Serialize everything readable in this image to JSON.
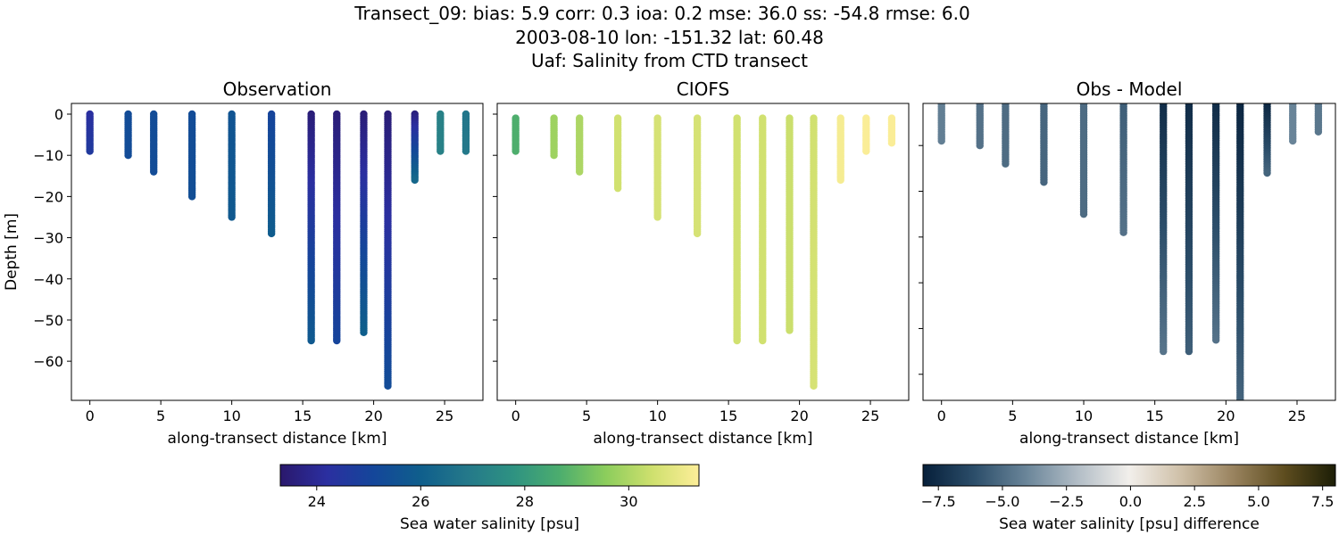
{
  "title_lines": [
    "Transect_09: bias: 5.9  corr: 0.3  ioa: 0.2  mse: 36.0  ss: -54.8  rmse: 6.0",
    "2003-08-10 lon: -151.32 lat: 60.48",
    "Uaf: Salinity from CTD transect"
  ],
  "chart_data": [
    {
      "type": "scatter",
      "title": "Observation",
      "xlabel": "along-transect distance [km]",
      "ylabel": "Depth [m]",
      "xlim": [
        -1.3,
        27.7
      ],
      "ylim": [
        -69.5,
        2.6
      ],
      "xticks": [
        0,
        5,
        10,
        15,
        20,
        25
      ],
      "yticks": [
        0,
        -10,
        -20,
        -30,
        -40,
        -50,
        -60
      ],
      "xtick_labels": [
        "0",
        "5",
        "10",
        "15",
        "20",
        "25"
      ],
      "ytick_labels": [
        "0",
        "−10",
        "−20",
        "−30",
        "−40",
        "−50",
        "−60"
      ],
      "colormap": "haline",
      "profiles": [
        {
          "x": 0,
          "top": 0,
          "bottom": -9,
          "value_top": 24.2,
          "value_bottom": 24.6
        },
        {
          "x": 2.7,
          "top": 0,
          "bottom": -10,
          "value_top": 25.3,
          "value_bottom": 25.3
        },
        {
          "x": 4.5,
          "top": 0,
          "bottom": -14,
          "value_top": 25.3,
          "value_bottom": 25.3
        },
        {
          "x": 7.2,
          "top": 0,
          "bottom": -20,
          "value_top": 25.3,
          "value_bottom": 25.4
        },
        {
          "x": 10.0,
          "top": 0,
          "bottom": -25,
          "value_top": 25.6,
          "value_bottom": 25.8
        },
        {
          "x": 12.8,
          "top": 0,
          "bottom": -29,
          "value_top": 25.0,
          "value_bottom": 25.9
        },
        {
          "x": 15.6,
          "top": 0,
          "bottom": -55,
          "value_top": 23.5,
          "value_bottom": 25.8
        },
        {
          "x": 17.4,
          "top": 0,
          "bottom": -55,
          "value_top": 23.5,
          "value_bottom": 25.0
        },
        {
          "x": 19.3,
          "top": 0,
          "bottom": -53,
          "value_top": 23.5,
          "value_bottom": 26.0
        },
        {
          "x": 21.0,
          "top": 0,
          "bottom": -66,
          "value_top": 23.5,
          "value_bottom": 25.3
        },
        {
          "x": 22.9,
          "top": 0,
          "bottom": -16,
          "value_top": 23.6,
          "value_bottom": 26.3
        },
        {
          "x": 24.7,
          "top": 0,
          "bottom": -9,
          "value_top": 27.2,
          "value_bottom": 27.2
        },
        {
          "x": 26.5,
          "top": 0,
          "bottom": -9,
          "value_top": 26.8,
          "value_bottom": 26.9
        }
      ]
    },
    {
      "type": "scatter",
      "title": "CIOFS",
      "xlabel": "along-transect distance [km]",
      "xlim": [
        -1.3,
        27.7
      ],
      "ylim": [
        -69.5,
        2.6
      ],
      "xticks": [
        0,
        5,
        10,
        15,
        20,
        25
      ],
      "yticks": [
        0,
        -10,
        -20,
        -30,
        -40,
        -50,
        -60
      ],
      "xtick_labels": [
        "0",
        "5",
        "10",
        "15",
        "20",
        "25"
      ],
      "colormap": "haline",
      "profiles": [
        {
          "x": 0,
          "top": -1,
          "bottom": -9,
          "value_top": 28.7,
          "value_bottom": 28.7
        },
        {
          "x": 2.7,
          "top": -1,
          "bottom": -10,
          "value_top": 29.8,
          "value_bottom": 29.8
        },
        {
          "x": 4.5,
          "top": -1,
          "bottom": -14,
          "value_top": 30.0,
          "value_bottom": 30.0
        },
        {
          "x": 7.2,
          "top": -1,
          "bottom": -18,
          "value_top": 30.5,
          "value_bottom": 30.5
        },
        {
          "x": 10.0,
          "top": -1,
          "bottom": -25,
          "value_top": 30.6,
          "value_bottom": 30.6
        },
        {
          "x": 12.8,
          "top": -1,
          "bottom": -29,
          "value_top": 30.6,
          "value_bottom": 30.6
        },
        {
          "x": 15.6,
          "top": -1,
          "bottom": -55,
          "value_top": 30.5,
          "value_bottom": 30.5
        },
        {
          "x": 17.4,
          "top": -1,
          "bottom": -55,
          "value_top": 30.5,
          "value_bottom": 30.5
        },
        {
          "x": 19.3,
          "top": -1,
          "bottom": -52.5,
          "value_top": 30.4,
          "value_bottom": 30.4
        },
        {
          "x": 21.0,
          "top": -1,
          "bottom": -66,
          "value_top": 30.5,
          "value_bottom": 30.6
        },
        {
          "x": 22.9,
          "top": -1,
          "bottom": -16,
          "value_top": 31.2,
          "value_bottom": 31.2
        },
        {
          "x": 24.7,
          "top": -1,
          "bottom": -9,
          "value_top": 31.3,
          "value_bottom": 31.3
        },
        {
          "x": 26.5,
          "top": -1,
          "bottom": -7,
          "value_top": 31.3,
          "value_bottom": 31.3
        }
      ]
    },
    {
      "type": "scatter",
      "title": "Obs - Model",
      "xlabel": "along-transect distance [km]",
      "xlim": [
        -1.3,
        27.7
      ],
      "ylim": [
        -65.7,
        -0.8
      ],
      "xticks": [
        0,
        5,
        10,
        15,
        20,
        25
      ],
      "yticks": [
        -10,
        -20,
        -30,
        -40,
        -50,
        -60
      ],
      "xtick_labels": [
        "0",
        "5",
        "10",
        "15",
        "20",
        "25"
      ],
      "colormap": "diff",
      "profiles": [
        {
          "x": 0,
          "top": -1,
          "bottom": -9,
          "value_top": -4.3,
          "value_bottom": -4.3
        },
        {
          "x": 2.7,
          "top": -1,
          "bottom": -10,
          "value_top": -4.8,
          "value_bottom": -4.8
        },
        {
          "x": 4.5,
          "top": -1,
          "bottom": -14,
          "value_top": -5.0,
          "value_bottom": -5.0
        },
        {
          "x": 7.2,
          "top": -1,
          "bottom": -18,
          "value_top": -5.2,
          "value_bottom": -5.2
        },
        {
          "x": 10.0,
          "top": -1,
          "bottom": -25,
          "value_top": -5.0,
          "value_bottom": -5.0
        },
        {
          "x": 12.8,
          "top": -1,
          "bottom": -29,
          "value_top": -5.5,
          "value_bottom": -4.8
        },
        {
          "x": 15.6,
          "top": -1,
          "bottom": -55,
          "value_top": -7.5,
          "value_bottom": -4.7
        },
        {
          "x": 17.4,
          "top": -1,
          "bottom": -55,
          "value_top": -7.5,
          "value_bottom": -5.5
        },
        {
          "x": 19.3,
          "top": -1,
          "bottom": -52.5,
          "value_top": -7.5,
          "value_bottom": -4.8
        },
        {
          "x": 21.0,
          "top": -1,
          "bottom": -66,
          "value_top": -7.8,
          "value_bottom": -5.3
        },
        {
          "x": 22.9,
          "top": -1,
          "bottom": -16,
          "value_top": -7.8,
          "value_bottom": -5.3
        },
        {
          "x": 24.7,
          "top": -1,
          "bottom": -9,
          "value_top": -4.1,
          "value_bottom": -4.1
        },
        {
          "x": 26.5,
          "top": -1,
          "bottom": -7,
          "value_top": -4.6,
          "value_bottom": -4.6
        }
      ]
    }
  ],
  "colorbars": [
    {
      "label": "Sea water salinity [psu]",
      "range": [
        23.3,
        31.35
      ],
      "ticks": [
        24,
        26,
        28,
        30
      ],
      "tick_labels": [
        "24",
        "26",
        "28",
        "30"
      ],
      "colors": [
        "#2a186c",
        "#2b2fa0",
        "#14469a",
        "#0f5e8c",
        "#24788a",
        "#2e9282",
        "#4cad6e",
        "#8ccd5c",
        "#cfe06e",
        "#fdee99"
      ]
    },
    {
      "label": "Sea water salinity [psu] difference",
      "range": [
        -8.1,
        8.0
      ],
      "ticks": [
        -7.5,
        -5,
        -2.5,
        0,
        2.5,
        5,
        7.5
      ],
      "tick_labels": [
        "−7.5",
        "−5.0",
        "−2.5",
        "0.0",
        "2.5",
        "5.0",
        "7.5"
      ],
      "colors": [
        "#061f3a",
        "#2c4e6a",
        "#6a8599",
        "#b2bdc6",
        "#f2efeb",
        "#cfc0a8",
        "#9a8460",
        "#5e4d1f",
        "#1c1e06"
      ]
    }
  ]
}
